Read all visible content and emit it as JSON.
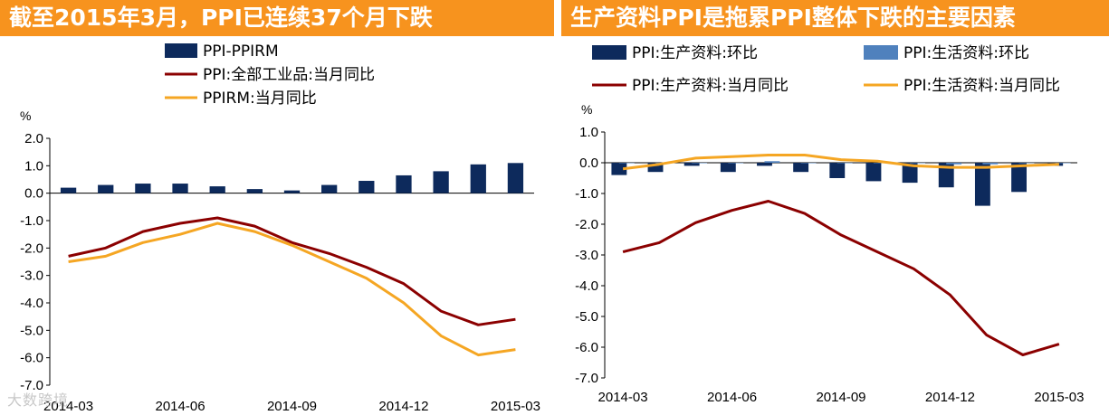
{
  "watermark": "大数跨境",
  "charts": [
    {
      "banner": "截至2015年3月，PPI已连续37个月下跌",
      "chart_data": {
        "type": "bar+line",
        "unit": "%",
        "ylim": [
          -7.0,
          2.0
        ],
        "yticks": [
          "2.0",
          "1.0",
          "0.0",
          "-1.0",
          "-2.0",
          "-3.0",
          "-4.0",
          "-5.0",
          "-6.0",
          "-7.0"
        ],
        "ytick_values": [
          2,
          1,
          0,
          -1,
          -2,
          -3,
          -4,
          -5,
          -6,
          -7
        ],
        "x": [
          "2014-03",
          "2014-04",
          "2014-05",
          "2014-06",
          "2014-07",
          "2014-08",
          "2014-09",
          "2014-10",
          "2014-11",
          "2014-12",
          "2015-01",
          "2015-02",
          "2015-03"
        ],
        "xtick_labels": [
          "2014-03",
          "2014-06",
          "2014-09",
          "2014-12",
          "2015-03"
        ],
        "xtick_index": [
          0,
          3,
          6,
          9,
          12
        ],
        "legend_placement": "top",
        "series": [
          {
            "name": "PPI-PPIRM",
            "kind": "bar",
            "color": "#0d2a5c",
            "values": [
              0.2,
              0.3,
              0.35,
              0.35,
              0.25,
              0.15,
              0.1,
              0.3,
              0.45,
              0.65,
              0.8,
              1.05,
              1.1
            ]
          },
          {
            "name": "PPI:全部工业品:当月同比",
            "kind": "line",
            "color": "#8b0000",
            "values": [
              -2.3,
              -2.0,
              -1.4,
              -1.1,
              -0.9,
              -1.2,
              -1.8,
              -2.2,
              -2.7,
              -3.3,
              -4.3,
              -4.8,
              -4.6
            ]
          },
          {
            "name": "PPIRM:当月同比",
            "kind": "line",
            "color": "#f5a623",
            "values": [
              -2.5,
              -2.3,
              -1.8,
              -1.5,
              -1.1,
              -1.4,
              -1.9,
              -2.5,
              -3.1,
              -4.0,
              -5.2,
              -5.9,
              -5.7
            ]
          }
        ]
      }
    },
    {
      "banner": "生产资料PPI是拖累PPI整体下跌的主要因素",
      "chart_data": {
        "type": "bar+line",
        "unit": "%",
        "ylim": [
          -7.0,
          1.0
        ],
        "yticks": [
          "1.0",
          "0.0",
          "-1.0",
          "-2.0",
          "-3.0",
          "-4.0",
          "-5.0",
          "-6.0",
          "-7.0"
        ],
        "ytick_values": [
          1,
          0,
          -1,
          -2,
          -3,
          -4,
          -5,
          -6,
          -7
        ],
        "x": [
          "2014-03",
          "2014-04",
          "2014-05",
          "2014-06",
          "2014-07",
          "2014-08",
          "2014-09",
          "2014-10",
          "2014-11",
          "2014-12",
          "2015-01",
          "2015-02",
          "2015-03"
        ],
        "xtick_labels": [
          "2014-03",
          "2014-06",
          "2014-09",
          "2014-12",
          "2015-03"
        ],
        "xtick_index": [
          0,
          3,
          6,
          9,
          12
        ],
        "legend_placement": "top",
        "series": [
          {
            "name": "PPI:生产资料:环比",
            "kind": "bar",
            "color": "#0d2a5c",
            "values": [
              -0.4,
              -0.3,
              -0.1,
              -0.3,
              -0.1,
              -0.3,
              -0.5,
              -0.6,
              -0.65,
              -0.8,
              -1.4,
              -0.95,
              -0.1
            ]
          },
          {
            "name": "PPI:生活资料:环比",
            "kind": "bar",
            "color": "#4f81bd",
            "values": [
              0.0,
              0.0,
              0.0,
              0.0,
              0.05,
              0.0,
              0.0,
              0.0,
              0.0,
              -0.05,
              -0.05,
              0.0,
              0.0
            ]
          },
          {
            "name": "PPI:生产资料:当月同比",
            "kind": "line",
            "color": "#8b0000",
            "values": [
              -2.9,
              -2.6,
              -1.95,
              -1.55,
              -1.25,
              -1.65,
              -2.35,
              -2.9,
              -3.45,
              -4.3,
              -5.6,
              -6.25,
              -5.9
            ]
          },
          {
            "name": "PPI:生活资料:当月同比",
            "kind": "line",
            "color": "#f5a623",
            "values": [
              -0.2,
              -0.05,
              0.15,
              0.2,
              0.25,
              0.25,
              0.1,
              0.05,
              -0.1,
              -0.15,
              -0.15,
              -0.1,
              -0.05
            ]
          }
        ]
      }
    }
  ]
}
